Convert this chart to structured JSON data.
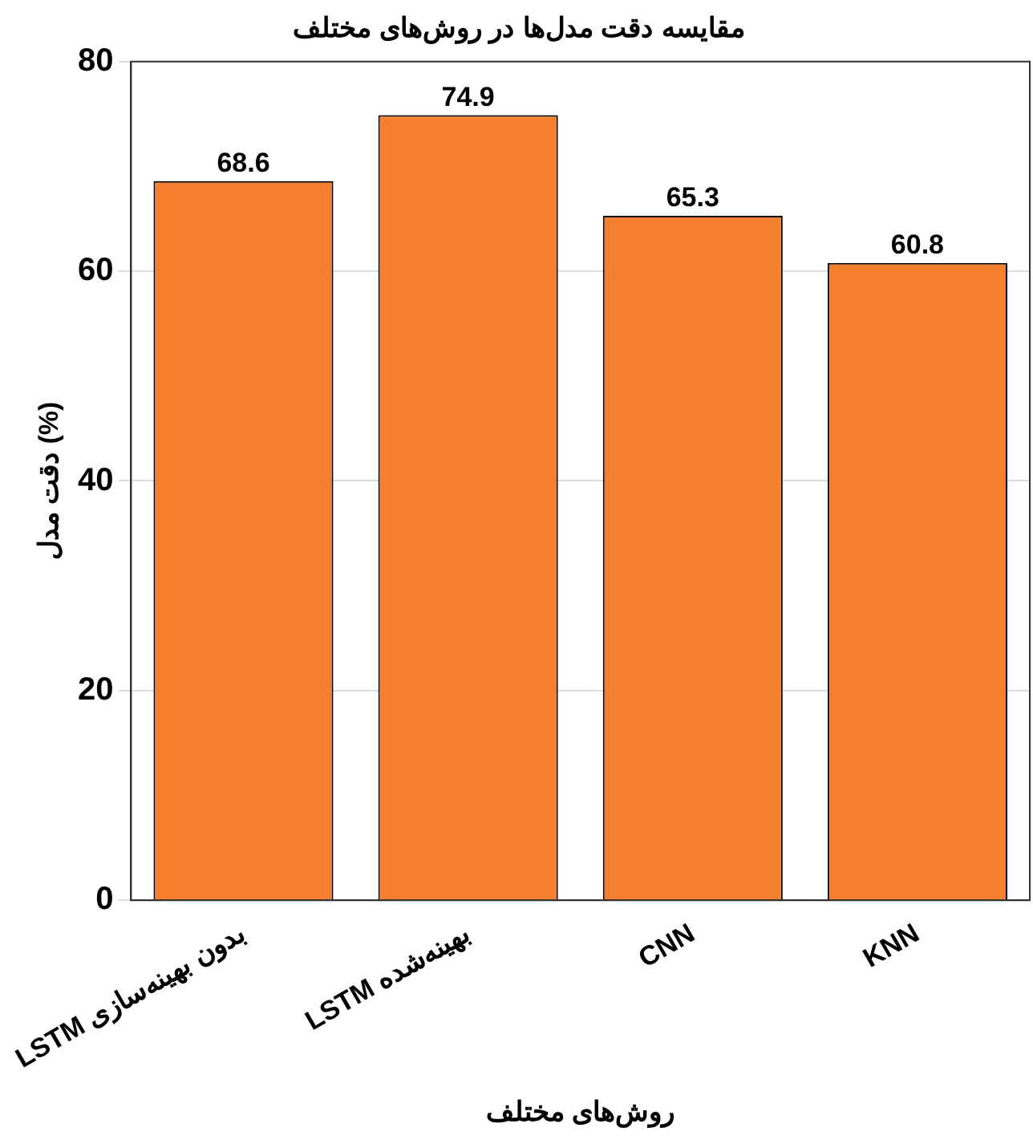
{
  "chart_data": {
    "type": "bar",
    "title": "مقایسه دقت مدل‌ها در روش‌های مختلف",
    "xlabel": "روش‌های مختلف",
    "ylabel": "دقت مدل (%)",
    "categories": [
      "LSTM بدون بهینه‌سازی",
      "LSTM بهینه‌شده",
      "CNN",
      "KNN"
    ],
    "values": [
      68.6,
      74.9,
      65.3,
      60.8
    ],
    "color": "#f47f2f",
    "ylim": [
      0,
      80
    ],
    "yticks": [
      0,
      20,
      40,
      60,
      80
    ],
    "grid": "y",
    "data_labels": true
  }
}
